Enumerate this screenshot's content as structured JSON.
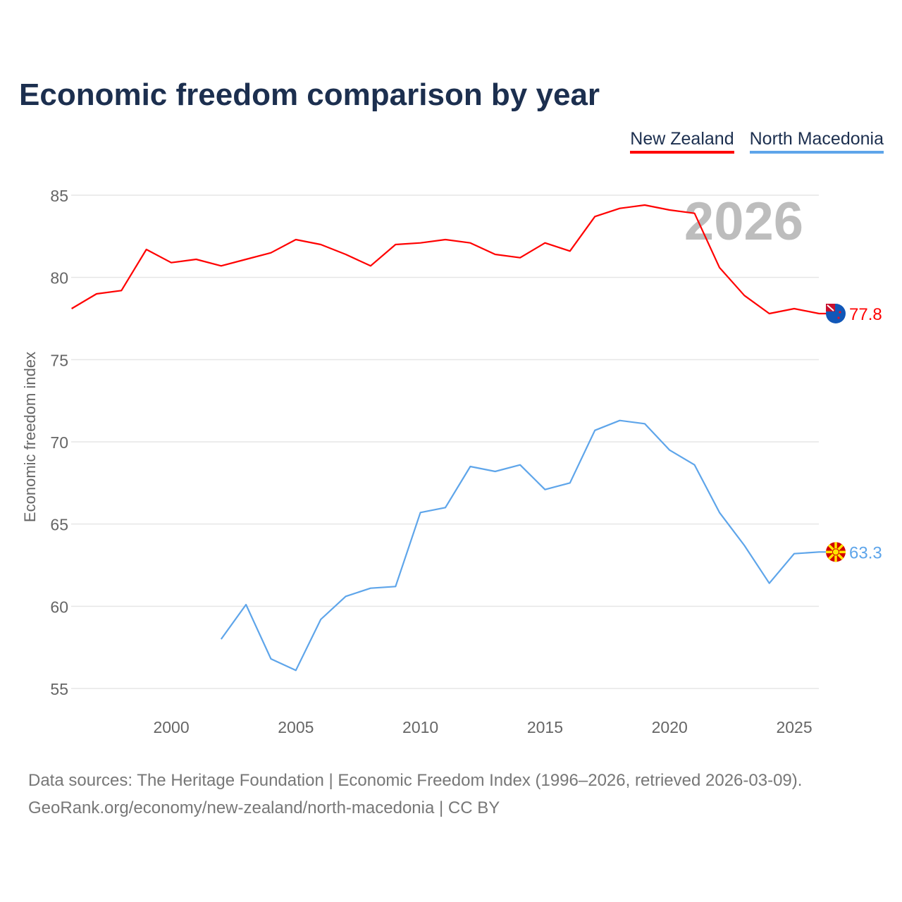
{
  "title": "Economic freedom comparison by year",
  "watermark_year": "2026",
  "footer": {
    "line1": "Data sources: The Heritage Foundation | Economic Freedom Index (1996–2026, retrieved 2026-03-09).",
    "line2": "GeoRank.org/economy/new-zealand/north-macedonia | CC BY"
  },
  "chart_data": {
    "type": "line",
    "title": "Economic freedom comparison by year",
    "xlabel": "",
    "ylabel": "Economic freedom index",
    "xlim": [
      1996,
      2026
    ],
    "ylim": [
      54,
      86.5
    ],
    "xticks": [
      2000,
      2005,
      2010,
      2015,
      2020,
      2025
    ],
    "yticks": [
      55,
      60,
      65,
      70,
      75,
      80,
      85
    ],
    "grid": true,
    "legend_position": "top-right",
    "series": [
      {
        "name": "New Zealand",
        "color": "#ff0000",
        "end_label": "77.8",
        "flag": "new-zealand-flag",
        "x": [
          1996,
          1997,
          1998,
          1999,
          2000,
          2001,
          2002,
          2003,
          2004,
          2005,
          2006,
          2007,
          2008,
          2009,
          2010,
          2011,
          2012,
          2013,
          2014,
          2015,
          2016,
          2017,
          2018,
          2019,
          2020,
          2021,
          2022,
          2023,
          2024,
          2025,
          2026
        ],
        "values": [
          78.1,
          79.0,
          79.2,
          81.7,
          80.9,
          81.1,
          80.7,
          81.1,
          81.5,
          82.3,
          82.0,
          81.4,
          80.7,
          82.0,
          82.1,
          82.3,
          82.1,
          81.4,
          81.2,
          82.1,
          81.6,
          83.7,
          84.2,
          84.4,
          84.1,
          83.9,
          80.6,
          78.9,
          77.8,
          78.1,
          77.8
        ]
      },
      {
        "name": "North Macedonia",
        "color": "#5ea5ea",
        "end_label": "63.3",
        "flag": "north-macedonia-flag",
        "x": [
          2002,
          2003,
          2004,
          2005,
          2006,
          2007,
          2008,
          2009,
          2010,
          2011,
          2012,
          2013,
          2014,
          2015,
          2016,
          2017,
          2018,
          2019,
          2020,
          2021,
          2022,
          2023,
          2024,
          2025,
          2026
        ],
        "values": [
          58.0,
          60.1,
          56.8,
          56.1,
          59.2,
          60.6,
          61.1,
          61.2,
          65.7,
          66.0,
          68.5,
          68.2,
          68.6,
          67.1,
          67.5,
          70.7,
          71.3,
          71.1,
          69.5,
          68.6,
          65.7,
          63.7,
          61.4,
          63.2,
          63.3
        ]
      }
    ]
  }
}
